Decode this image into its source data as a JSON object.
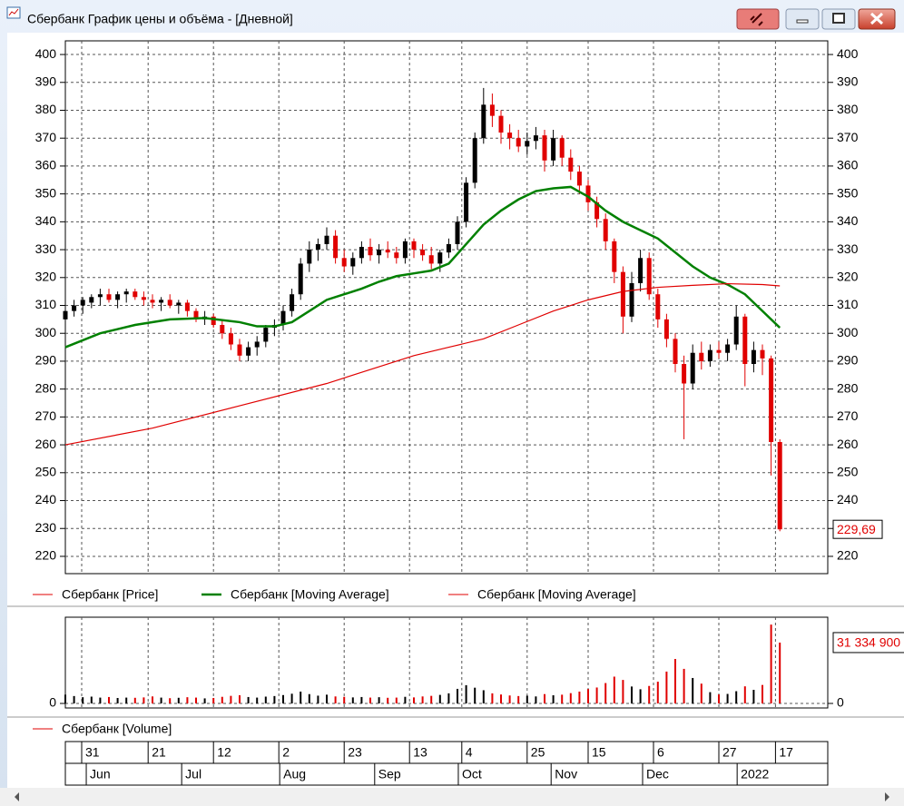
{
  "window": {
    "title": "Сбербанк График цены и объёма - [Дневной]"
  },
  "chart_data": {
    "type": "candlestick",
    "x": [
      0,
      2,
      4,
      6,
      8,
      10,
      12,
      14,
      16,
      18,
      20,
      22,
      24,
      26,
      28,
      30,
      32,
      34,
      36,
      38,
      40,
      42,
      44,
      46,
      48,
      50,
      52,
      54,
      56,
      58,
      60,
      62,
      64,
      66,
      68,
      70,
      72,
      74,
      76,
      78,
      80,
      82,
      84,
      86,
      88,
      90,
      92,
      94,
      96,
      98,
      100,
      102,
      104,
      106,
      108,
      110,
      112,
      114,
      116,
      118,
      120,
      122,
      124,
      126,
      128,
      130,
      132,
      134,
      136,
      138,
      140,
      142,
      144,
      146,
      148,
      150,
      152,
      154,
      156,
      158,
      160,
      162,
      164
    ],
    "xlim": [
      0,
      175
    ],
    "xticks": [
      {
        "value": 3.75,
        "label": "31"
      },
      {
        "value": 19,
        "label": "21"
      },
      {
        "value": 34,
        "label": "12"
      },
      {
        "value": 49,
        "label": "2"
      },
      {
        "value": 64,
        "label": "23"
      },
      {
        "value": 79,
        "label": "13"
      },
      {
        "value": 91,
        "label": "4"
      },
      {
        "value": 106,
        "label": "25"
      },
      {
        "value": 120,
        "label": "15"
      },
      {
        "value": 135,
        "label": "6"
      },
      {
        "value": 150,
        "label": "27"
      },
      {
        "value": 163,
        "label": "17"
      }
    ],
    "month_ticks": [
      {
        "value": 4.8,
        "label": "Jun"
      },
      {
        "value": 26.7,
        "label": "Jul"
      },
      {
        "value": 49.2,
        "label": "Aug"
      },
      {
        "value": 71,
        "label": "Sep"
      },
      {
        "value": 90.2,
        "label": "Oct"
      },
      {
        "value": 111.5,
        "label": "Nov"
      },
      {
        "value": 132.5,
        "label": "Dec"
      },
      {
        "value": 154.2,
        "label": "2022"
      }
    ],
    "ylim": [
      213.8,
      404.9
    ],
    "yticks": [
      220,
      230,
      240,
      250,
      260,
      270,
      280,
      290,
      300,
      310,
      320,
      330,
      340,
      350,
      360,
      370,
      380,
      390,
      400
    ],
    "grid": true,
    "up_color": "#000000",
    "down_color": "#e00000",
    "series": [
      {
        "name": "Сбербанк [Price]",
        "color": "#e00000",
        "open": [
          305,
          308,
          310,
          311,
          313,
          314,
          312,
          314,
          315,
          313,
          312,
          311,
          312,
          310,
          311,
          308,
          305,
          306,
          303,
          300,
          296,
          292,
          295,
          297,
          302,
          303,
          308,
          314,
          325,
          330,
          332,
          335,
          327,
          324,
          327,
          331,
          328,
          330,
          329,
          327,
          333,
          330,
          328,
          325,
          329,
          332,
          340,
          354,
          370,
          382,
          378,
          372,
          370,
          367,
          369,
          371,
          362,
          370,
          363,
          358,
          353,
          347,
          341,
          333,
          322,
          306,
          318,
          327,
          314,
          305,
          298,
          289,
          282,
          293,
          290,
          294,
          293,
          296,
          306,
          289,
          294,
          291,
          261
        ],
        "high": [
          310,
          312,
          313,
          314,
          316,
          316,
          315,
          316,
          316,
          315,
          314,
          313,
          314,
          312,
          312,
          309,
          308,
          307,
          305,
          302,
          298,
          297,
          299,
          303,
          305,
          310,
          316,
          327,
          333,
          334,
          338,
          337,
          330,
          329,
          333,
          334,
          332,
          333,
          331,
          334,
          334,
          332,
          331,
          330,
          334,
          342,
          356,
          372,
          388,
          386,
          380,
          375,
          373,
          372,
          374,
          373,
          373,
          371,
          366,
          360,
          355,
          349,
          343,
          334,
          324,
          322,
          330,
          329,
          316,
          307,
          300,
          292,
          296,
          297,
          296,
          297,
          298,
          310,
          307,
          297,
          296,
          292,
          262
        ],
        "low": [
          303,
          306,
          307,
          309,
          310,
          311,
          309,
          311,
          312,
          310,
          309,
          308,
          309,
          307,
          306,
          304,
          303,
          302,
          298,
          294,
          290,
          290,
          292,
          295,
          299,
          301,
          306,
          312,
          322,
          326,
          330,
          325,
          322,
          321,
          325,
          326,
          325,
          327,
          325,
          325,
          327,
          326,
          323,
          322,
          327,
          330,
          338,
          352,
          368,
          374,
          368,
          366,
          365,
          364,
          366,
          358,
          360,
          360,
          355,
          350,
          344,
          338,
          330,
          318,
          300,
          304,
          315,
          312,
          302,
          295,
          286,
          262,
          280,
          287,
          288,
          291,
          290,
          294,
          281,
          286,
          285,
          249,
          229
        ],
        "close": [
          308,
          310,
          312,
          313,
          314,
          312,
          314,
          315,
          313,
          312,
          311,
          312,
          310,
          311,
          308,
          305,
          306,
          303,
          300,
          296,
          292,
          295,
          297,
          302,
          303,
          308,
          314,
          325,
          330,
          332,
          335,
          327,
          324,
          327,
          331,
          328,
          330,
          329,
          327,
          333,
          330,
          328,
          325,
          329,
          332,
          340,
          354,
          370,
          382,
          378,
          372,
          370,
          367,
          369,
          371,
          362,
          370,
          363,
          358,
          353,
          347,
          341,
          333,
          322,
          306,
          318,
          327,
          314,
          305,
          298,
          289,
          282,
          293,
          290,
          294,
          293,
          296,
          306,
          289,
          294,
          291,
          261,
          229.69
        ],
        "last_value_label": "229,69"
      },
      {
        "name": "Сбербанк [Moving Average]",
        "color": "#008000",
        "x": [
          0,
          8,
          16,
          24,
          32,
          40,
          44,
          48,
          52,
          56,
          60,
          64,
          68,
          72,
          76,
          80,
          84,
          88,
          92,
          96,
          100,
          104,
          108,
          112,
          116,
          120,
          124,
          128,
          132,
          136,
          140,
          144,
          148,
          152,
          156,
          160,
          164
        ],
        "values": [
          295,
          300,
          303,
          305,
          305.5,
          304,
          302.5,
          302.5,
          304,
          308,
          312,
          314,
          316,
          318.5,
          320.5,
          321.5,
          322.5,
          325,
          332,
          339,
          344,
          348,
          351,
          352,
          352.5,
          349,
          344,
          340,
          337,
          334,
          329,
          324,
          320,
          317.5,
          314,
          308,
          302
        ]
      },
      {
        "name": "Сбербанк [Moving Average]",
        "color": "#e00000",
        "x": [
          0,
          20,
          40,
          60,
          80,
          88,
          96,
          104,
          112,
          120,
          128,
          136,
          144,
          152,
          160,
          164
        ],
        "values": [
          260,
          266,
          274,
          282,
          292,
          295,
          298,
          303,
          308,
          312,
          315,
          316.5,
          317.2,
          317.8,
          317.5,
          317
        ]
      }
    ],
    "volume": {
      "name": "Сбербанк [Volume]",
      "color": "#e00000",
      "ylim": [
        -2340000,
        44400000
      ],
      "yticks": [
        0
      ],
      "values": [
        4500000,
        3800000,
        3200000,
        3500000,
        3000000,
        3300000,
        2800000,
        3000000,
        2900000,
        3100000,
        3600000,
        3000000,
        2700000,
        2900000,
        3200000,
        3000000,
        2600000,
        2800000,
        3400000,
        3900000,
        4200000,
        3300000,
        3000000,
        3500000,
        3800000,
        4300000,
        5000000,
        6100000,
        4800000,
        4000000,
        4500000,
        3600000,
        3400000,
        3100000,
        3300000,
        3000000,
        3200000,
        2900000,
        3000000,
        3400000,
        3100000,
        3600000,
        3900000,
        4400000,
        5200000,
        7500000,
        9400000,
        8100000,
        6800000,
        5200000,
        4600000,
        4100000,
        3800000,
        4000000,
        3600000,
        4800000,
        4200000,
        4500000,
        5300000,
        6100000,
        7400000,
        8200000,
        10500000,
        13800000,
        12100000,
        8700000,
        7300000,
        9000000,
        11200000,
        16400000,
        22900000,
        17800000,
        13100000,
        10200000,
        5800000,
        4600000,
        4900000,
        6300000,
        8800000,
        7000000,
        9500000,
        40600000,
        31334900
      ],
      "last_value_label": "31 334 900"
    }
  }
}
